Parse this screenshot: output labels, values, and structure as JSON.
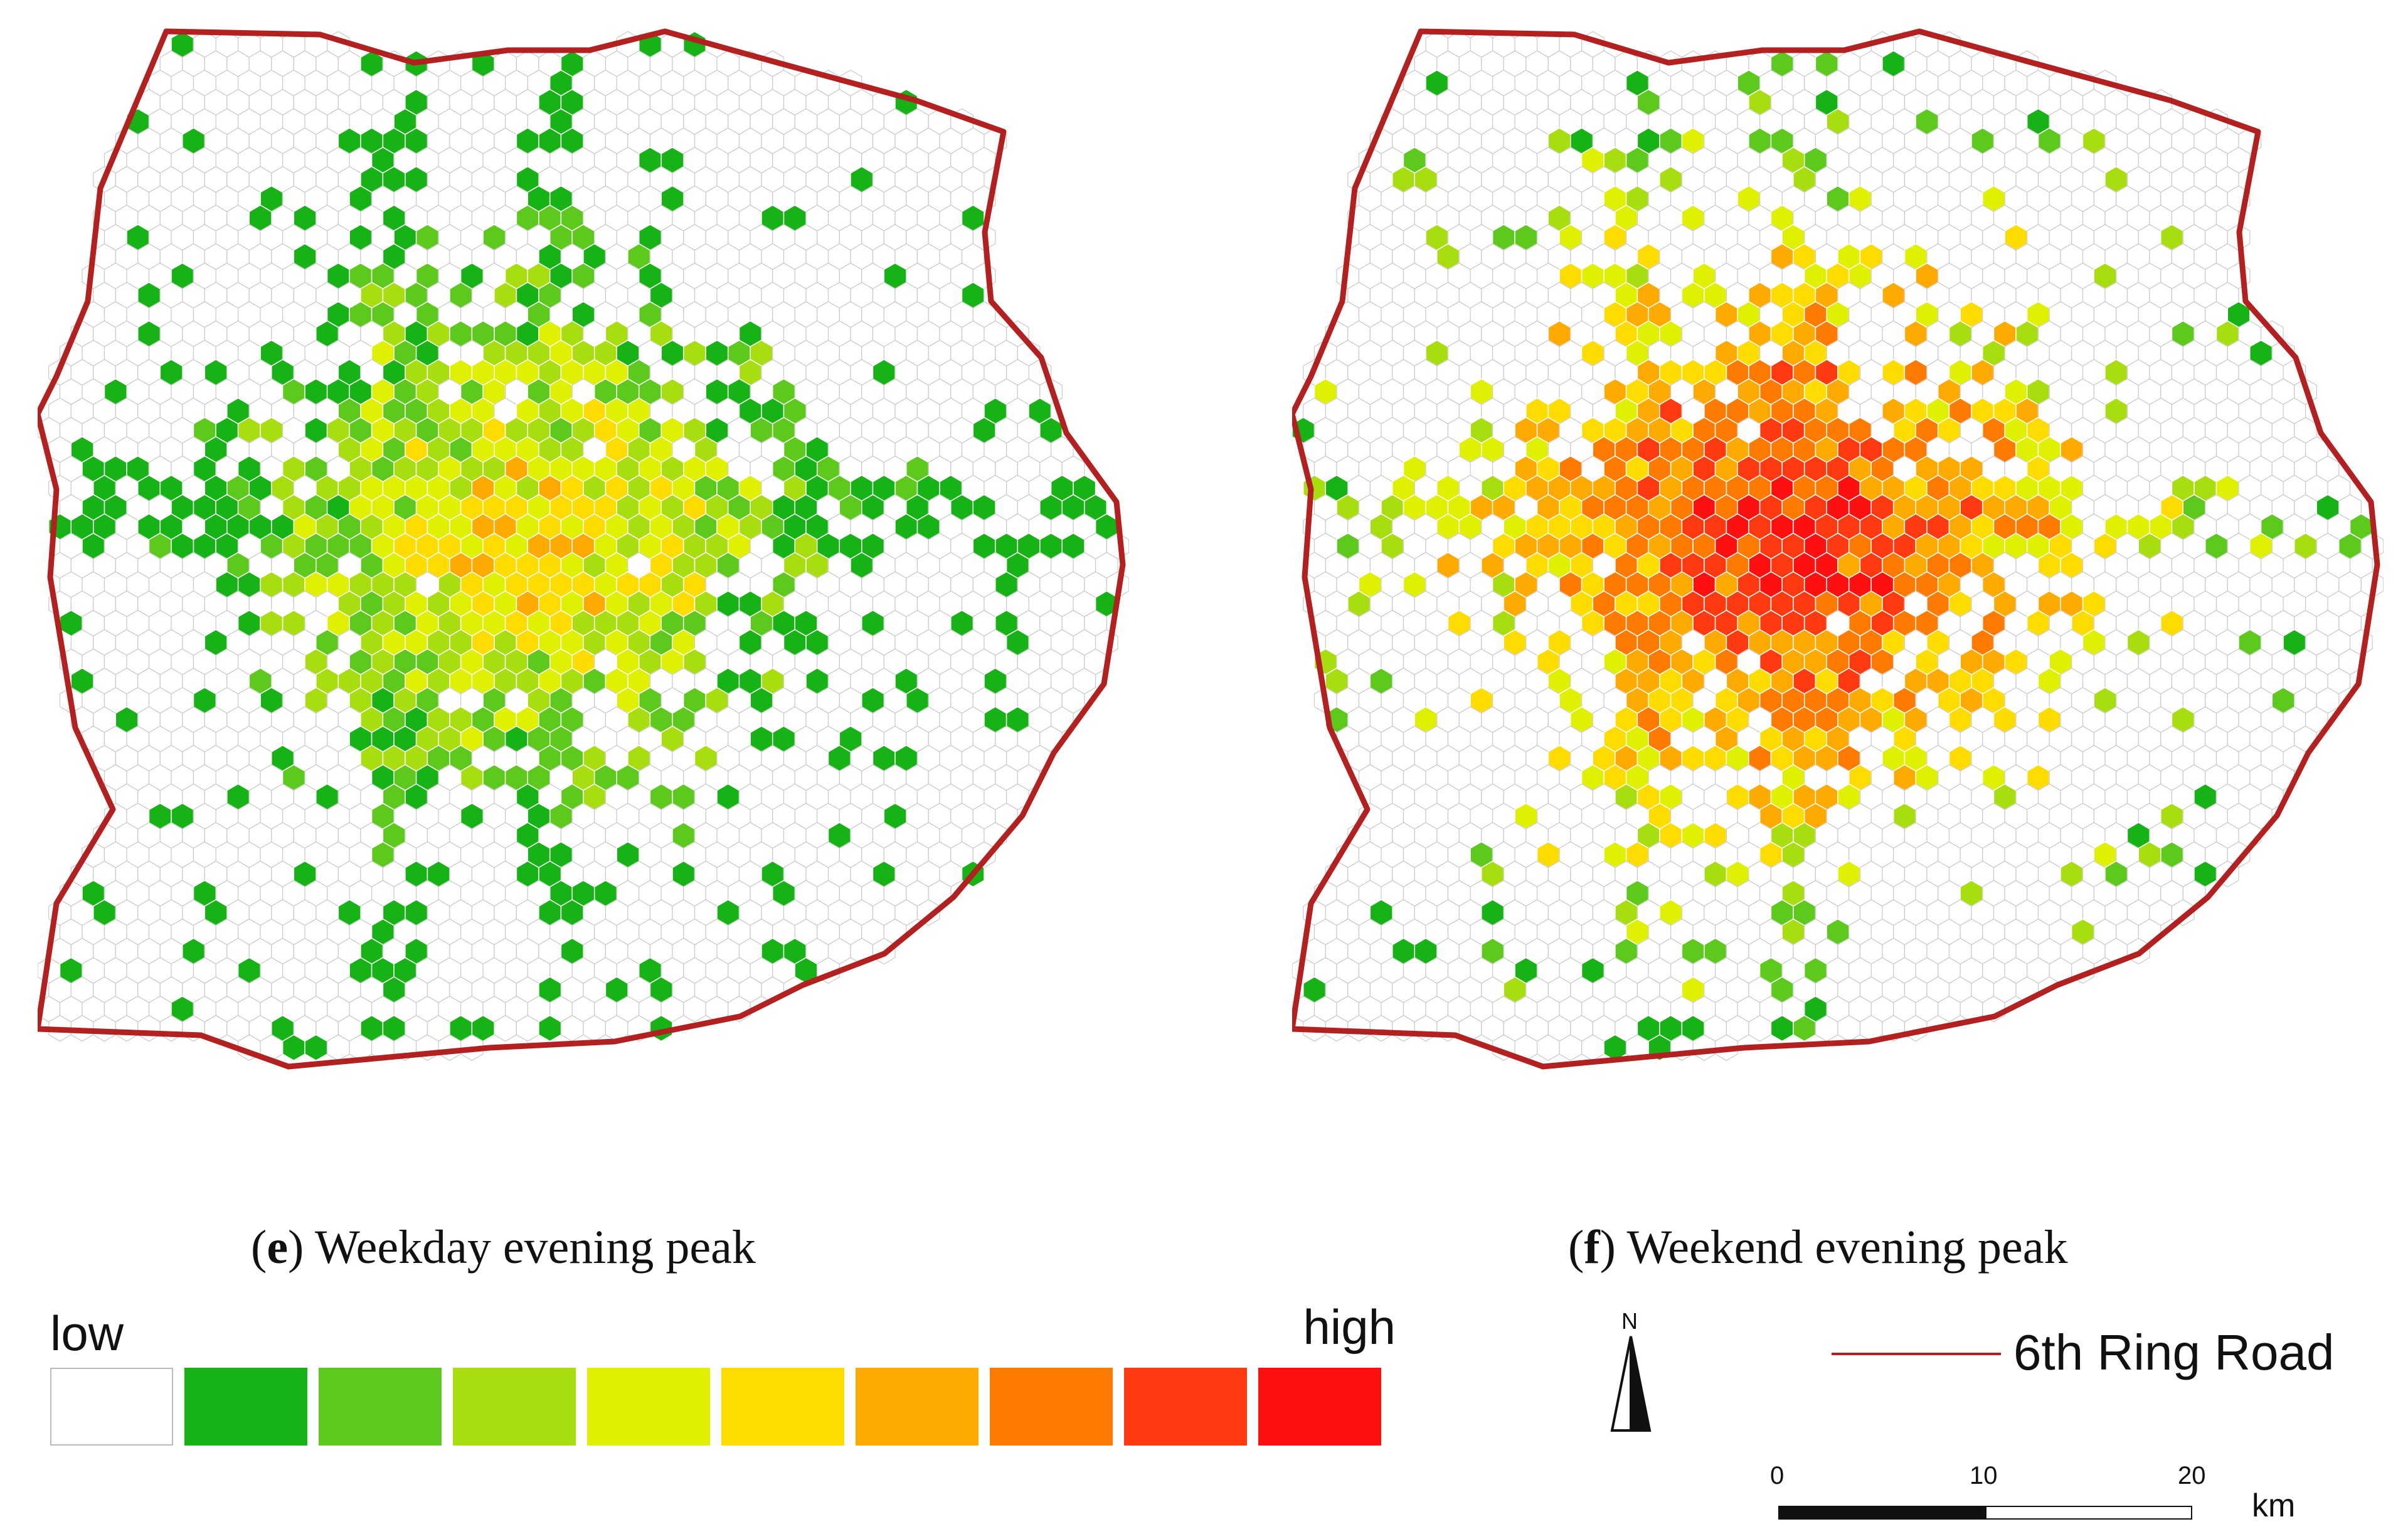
{
  "panels": [
    {
      "id": "e",
      "label": "e",
      "title": "Weekday evening peak"
    },
    {
      "id": "f",
      "label": "f",
      "title": "Weekend evening peak"
    }
  ],
  "legend": {
    "low_label": "low",
    "high_label": "high",
    "classes": [
      "#ffffff",
      "#16b216",
      "#5cc91c",
      "#a8dd10",
      "#dff000",
      "#ffdc00",
      "#ffaa00",
      "#ff7a00",
      "#ff3a10",
      "#ff1010"
    ]
  },
  "north_arrow": {
    "label": "N"
  },
  "boundary": {
    "label_bold": "6th",
    "label": "Ring Road",
    "color": "#b22020"
  },
  "scale": {
    "ticks": [
      "0",
      "10",
      "20"
    ],
    "unit": "km"
  }
}
